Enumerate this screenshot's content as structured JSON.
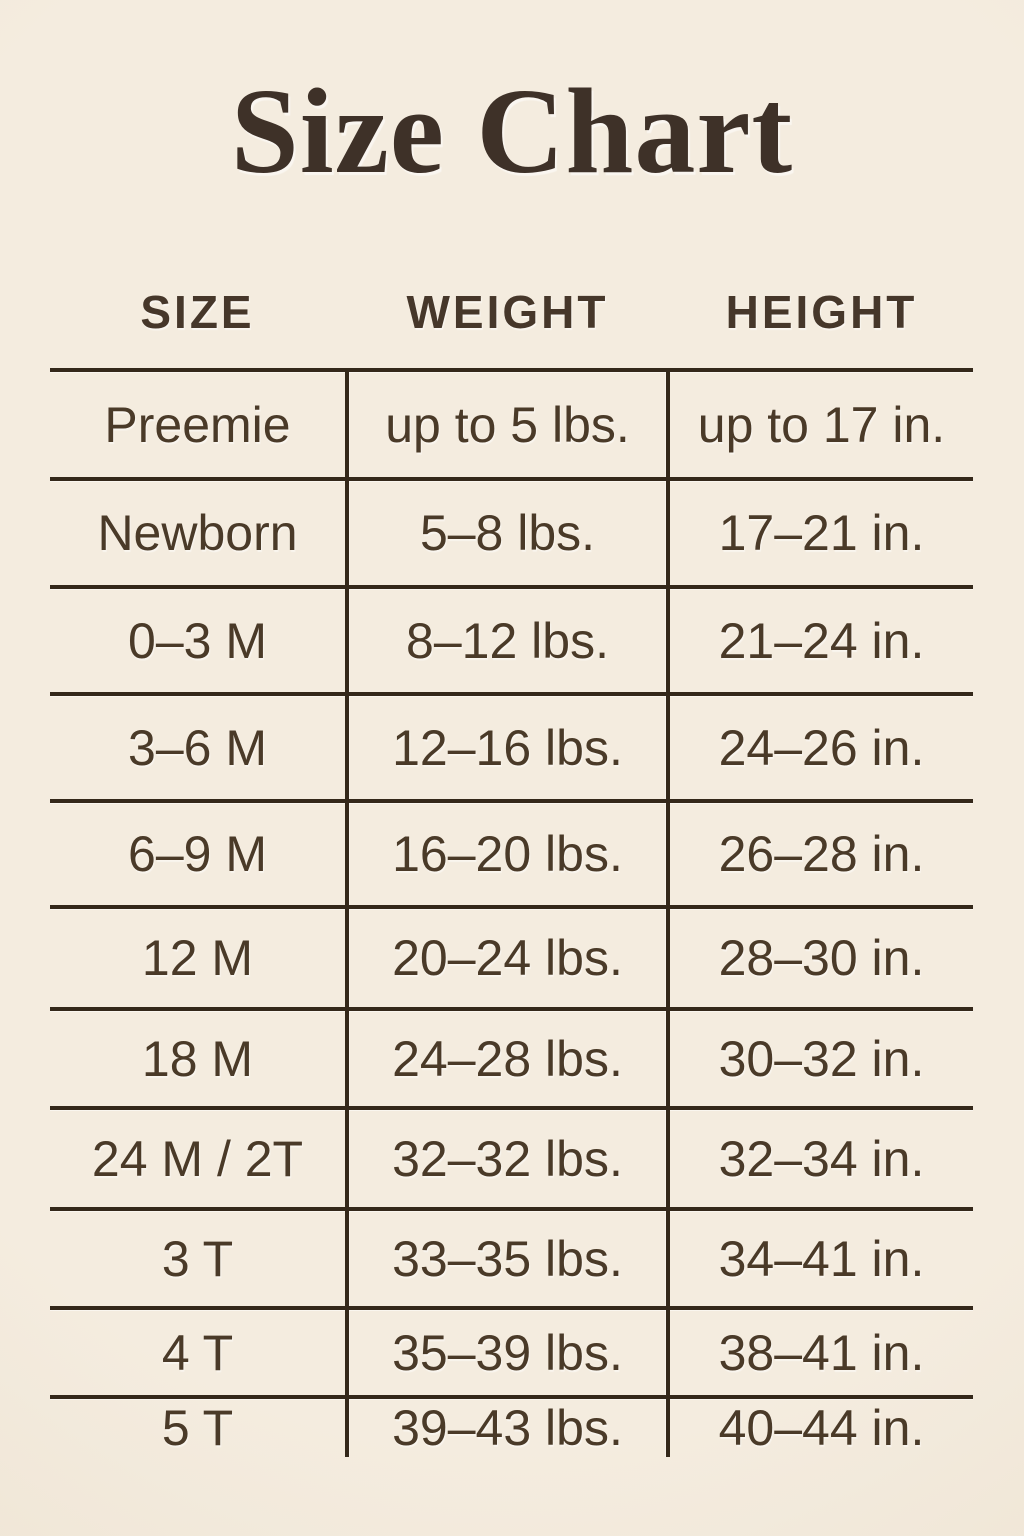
{
  "title": "Size Chart",
  "table": {
    "headers": [
      "SIZE",
      "WEIGHT",
      "HEIGHT"
    ],
    "rows": [
      [
        "Preemie",
        "up to 5 lbs.",
        "up to 17 in."
      ],
      [
        "Newborn",
        "5–8 lbs.",
        "17–21 in."
      ],
      [
        "0–3 M",
        "8–12 lbs.",
        "21–24 in."
      ],
      [
        "3–6 M",
        "12–16 lbs.",
        "24–26 in."
      ],
      [
        "6–9 M",
        "16–20 lbs.",
        "26–28 in."
      ],
      [
        "12 M",
        "20–24 lbs.",
        "28–30 in."
      ],
      [
        "18 M",
        "24–28 lbs.",
        "30–32 in."
      ],
      [
        "24 M / 2T",
        "32–32 lbs.",
        "32–34 in."
      ],
      [
        "3 T",
        "33–35 lbs.",
        "34–41 in."
      ],
      [
        "4 T",
        "35–39 lbs.",
        "38–41 in."
      ],
      [
        "5 T",
        "39–43 lbs.",
        "40–44 in."
      ]
    ]
  },
  "colors": {
    "background": "#f2e9dc",
    "text": "#4a3a28",
    "title_text": "#3e3128",
    "rule_line": "#34281a"
  },
  "chart_data": {
    "type": "table",
    "title": "Size Chart",
    "columns": [
      "SIZE",
      "WEIGHT",
      "HEIGHT"
    ],
    "rows": [
      {
        "size": "Preemie",
        "weight": "up to 5 lbs.",
        "height": "up to 17 in."
      },
      {
        "size": "Newborn",
        "weight": "5–8 lbs.",
        "height": "17–21 in."
      },
      {
        "size": "0–3 M",
        "weight": "8–12 lbs.",
        "height": "21–24 in."
      },
      {
        "size": "3–6 M",
        "weight": "12–16 lbs.",
        "height": "24–26 in."
      },
      {
        "size": "6–9 M",
        "weight": "16–20 lbs.",
        "height": "26–28 in."
      },
      {
        "size": "12 M",
        "weight": "20–24 lbs.",
        "height": "28–30 in."
      },
      {
        "size": "18 M",
        "weight": "24–28 lbs.",
        "height": "30–32 in."
      },
      {
        "size": "24 M / 2T",
        "weight": "32–32 lbs.",
        "height": "32–34 in."
      },
      {
        "size": "3 T",
        "weight": "33–35 lbs.",
        "height": "34–41 in."
      },
      {
        "size": "4 T",
        "weight": "35–39 lbs.",
        "height": "38–41 in."
      },
      {
        "size": "5 T",
        "weight": "39–43 lbs.",
        "height": "40–44 in."
      }
    ]
  }
}
